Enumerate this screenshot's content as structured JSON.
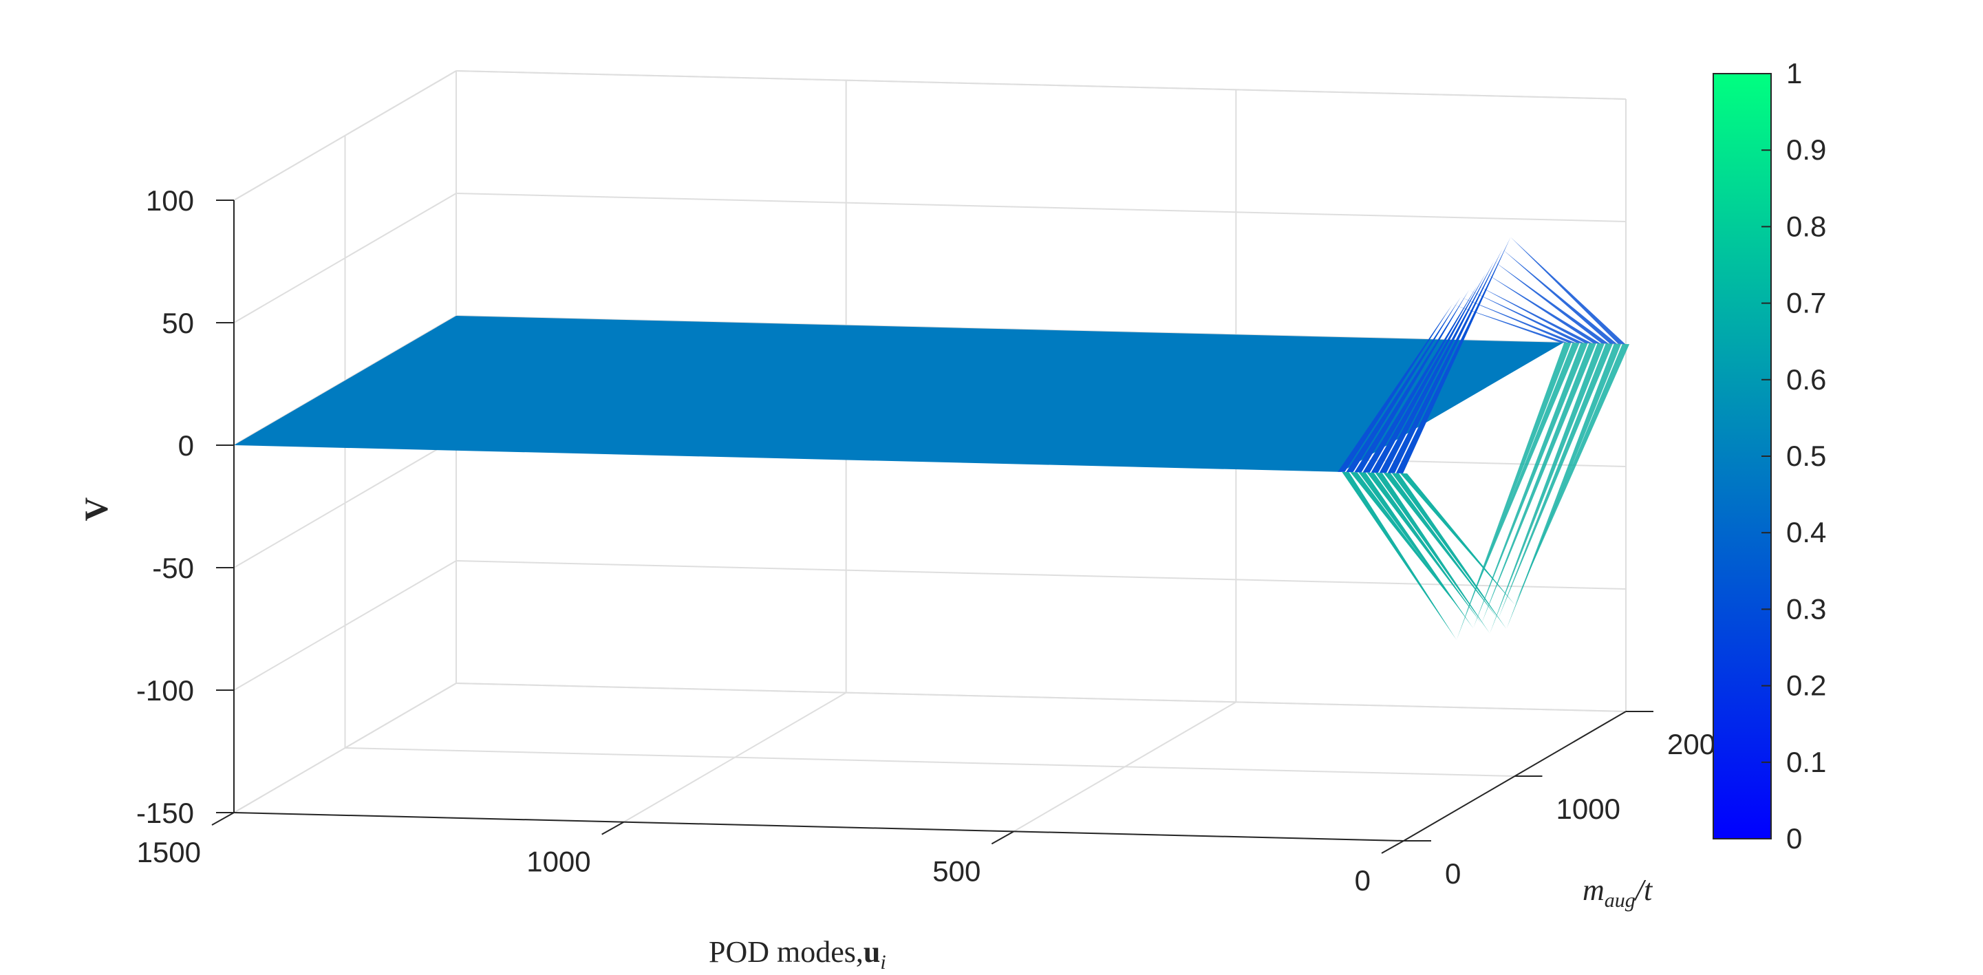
{
  "chart_data": {
    "type": "surface",
    "xlabel": "POD modes,",
    "xlabel_bold": "u",
    "xlabel_sub": "i",
    "ylabel": "m",
    "ylabel_sub": "aug",
    "ylabel_tail": "/t",
    "zlabel": "V",
    "x_ticks": [
      "1500",
      "1000",
      "500",
      "0"
    ],
    "y_ticks": [
      "0",
      "1000",
      "2000"
    ],
    "z_ticks": [
      "100",
      "50",
      "0",
      "-50",
      "-100",
      "-150"
    ],
    "x_range": [
      0,
      1500
    ],
    "y_range": [
      0,
      2000
    ],
    "z_range": [
      -150,
      100
    ],
    "colorbar_ticks": [
      "1",
      "0.9",
      "0.8",
      "0.7",
      "0.6",
      "0.5",
      "0.4",
      "0.3",
      "0.2",
      "0.1",
      "0"
    ],
    "colorbar_range": [
      0,
      1
    ],
    "colormap": [
      "#0000ff",
      "#00ff80"
    ],
    "surface_flat_color": "#007bc0",
    "flat_region_v": 0,
    "oscillation_region_modes": [
      0,
      80
    ],
    "oscillation_peaks": [
      {
        "v": 42,
        "color": "#0a52d6"
      },
      {
        "v": -95,
        "color": "#17b2a4"
      },
      {
        "v": 45,
        "color": "#0a52d6"
      },
      {
        "v": -85,
        "color": "#17b2a4"
      },
      {
        "v": 48,
        "color": "#0a52d6"
      },
      {
        "v": -90,
        "color": "#17b2a4"
      },
      {
        "v": 50,
        "color": "#0a52d6"
      },
      {
        "v": -88,
        "color": "#17b2a4"
      },
      {
        "v": 55,
        "color": "#0a52d6"
      },
      {
        "v": -92,
        "color": "#17b2a4"
      },
      {
        "v": 60,
        "color": "#0a52d6"
      },
      {
        "v": -86,
        "color": "#17b2a4"
      },
      {
        "v": 65,
        "color": "#0a52d6"
      },
      {
        "v": -90,
        "color": "#17b2a4"
      },
      {
        "v": 70,
        "color": "#0a52d6"
      },
      {
        "v": -80,
        "color": "#17b2a4"
      }
    ],
    "grid": true,
    "colorbar": "right"
  }
}
